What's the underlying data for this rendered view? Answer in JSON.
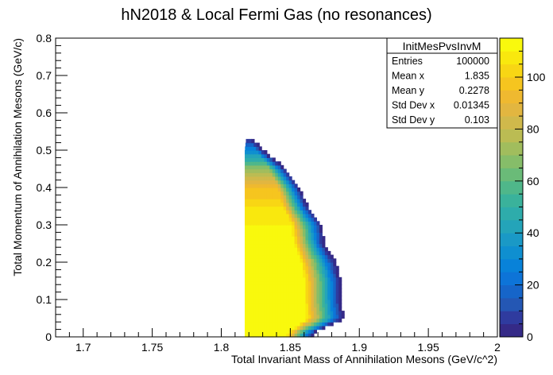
{
  "chart_data": {
    "type": "heatmap",
    "title": "hN2018 & Local Fermi Gas (no resonances)",
    "xlabel": "Total Invariant Mass of Annihilation Mesons (GeV/c^2)",
    "ylabel": "Total Momentum of Annihilation Mesons (GeV/c)",
    "xlim": [
      1.68,
      2.0
    ],
    "ylim": [
      0,
      0.8
    ],
    "zlim": [
      0,
      115
    ],
    "x_ticks": [
      1.7,
      1.75,
      1.8,
      1.85,
      1.9,
      1.95,
      2.0
    ],
    "x_tick_labels": [
      "1.7",
      "1.75",
      "1.8",
      "1.85",
      "1.9",
      "1.95",
      "2"
    ],
    "y_ticks": [
      0,
      0.1,
      0.2,
      0.3,
      0.4,
      0.5,
      0.6,
      0.7,
      0.8
    ],
    "y_tick_labels": [
      "0",
      "0.1",
      "0.2",
      "0.3",
      "0.4",
      "0.5",
      "0.6",
      "0.7",
      "0.8"
    ],
    "z_ticks": [
      0,
      20,
      40,
      60,
      80,
      100
    ],
    "z_tick_labels": [
      "0",
      "20",
      "40",
      "60",
      "80",
      "100"
    ],
    "grid": false,
    "palette": [
      "#352a87",
      "#2f3b9f",
      "#2457b4",
      "#1665c9",
      "#0d74d8",
      "#0882d9",
      "#0f8fd0",
      "#1a99c6",
      "#24a4b9",
      "#2eacab",
      "#3ab29b",
      "#4fb78a",
      "#6abb78",
      "#86bd69",
      "#a1bd5d",
      "#bbbc53",
      "#d0b94b",
      "#e2b640",
      "#efb930",
      "#f6c51f",
      "#f8d614",
      "#f9e80e",
      "#f9f90d"
    ],
    "distribution": [
      {
        "y": 0.01,
        "x_min": 1.817,
        "x_max": 1.866,
        "z_peak": 115
      },
      {
        "y": 0.05,
        "x_min": 1.817,
        "x_max": 1.888,
        "z_peak": 115
      },
      {
        "y": 0.1,
        "x_min": 1.817,
        "x_max": 1.886,
        "z_peak": 115
      },
      {
        "y": 0.15,
        "x_min": 1.817,
        "x_max": 1.886,
        "z_peak": 115
      },
      {
        "y": 0.2,
        "x_min": 1.817,
        "x_max": 1.882,
        "z_peak": 115
      },
      {
        "y": 0.25,
        "x_min": 1.817,
        "x_max": 1.874,
        "z_peak": 115
      },
      {
        "y": 0.3,
        "x_min": 1.817,
        "x_max": 1.872,
        "z_peak": 110
      },
      {
        "y": 0.35,
        "x_min": 1.817,
        "x_max": 1.862,
        "z_peak": 105
      },
      {
        "y": 0.4,
        "x_min": 1.817,
        "x_max": 1.856,
        "z_peak": 95
      },
      {
        "y": 0.45,
        "x_min": 1.817,
        "x_max": 1.846,
        "z_peak": 70
      },
      {
        "y": 0.5,
        "x_min": 1.817,
        "x_max": 1.83,
        "z_peak": 30
      },
      {
        "y": 0.53,
        "x_min": 1.818,
        "x_max": 1.822,
        "z_peak": 5
      }
    ]
  },
  "stats_box": {
    "title": "InitMesPvsInvM",
    "rows": [
      {
        "label": "Entries",
        "value": "100000"
      },
      {
        "label": "Mean x",
        "value": "1.835"
      },
      {
        "label": "Mean y",
        "value": "0.2278"
      },
      {
        "label": "Std Dev x",
        "value": "0.01345"
      },
      {
        "label": "Std Dev y",
        "value": "0.103"
      }
    ]
  }
}
